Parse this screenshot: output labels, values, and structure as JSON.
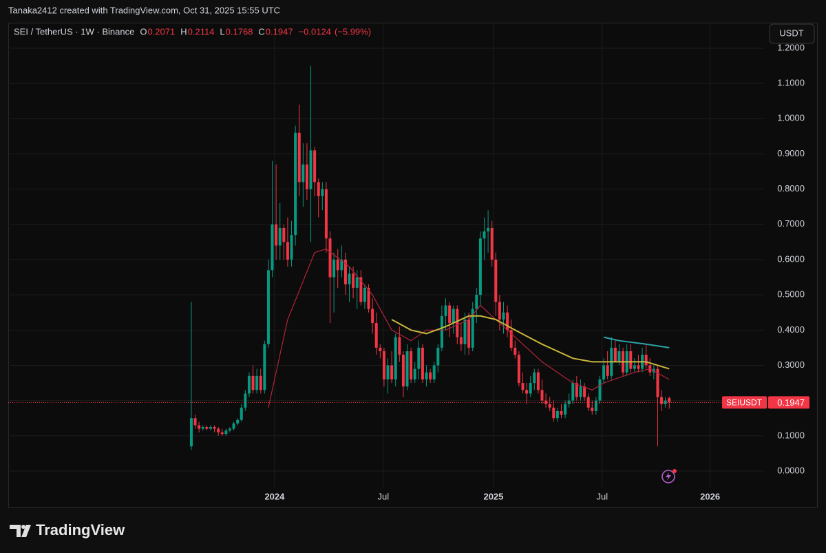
{
  "header": {
    "caption": "Tanaka2412 created with TradingView.com, Oct 31, 2025 15:55 UTC"
  },
  "footer": {
    "brand": "TradingView"
  },
  "chart_data": {
    "type": "candlestick",
    "title": "SEI / TetherUS · 1W · Binance",
    "currency": "USDT",
    "ohlc_legend": [
      {
        "label": "O",
        "value": "0.2071"
      },
      {
        "label": "H",
        "value": "0.2114"
      },
      {
        "label": "L",
        "value": "0.1768"
      },
      {
        "label": "C",
        "value": "0.1947"
      }
    ],
    "change": "−0.0124",
    "change_percent": "(−5.99%)",
    "last_price": {
      "name": "SEIUSDT",
      "value": 0.1947,
      "label": "0.1947"
    },
    "up_color": "#089981",
    "down_color": "#f23645",
    "grid": true,
    "ylim": [
      -0.1036,
      1.2703
    ],
    "yticks": [
      {
        "value": 0,
        "label": "0.0000"
      },
      {
        "value": 0.1,
        "label": "0.1000"
      },
      {
        "value": 0.2,
        "label": "0.2000"
      },
      {
        "value": 0.3,
        "label": "0.3000"
      },
      {
        "value": 0.4,
        "label": "0.4000"
      },
      {
        "value": 0.5,
        "label": "0.5000"
      },
      {
        "value": 0.6,
        "label": "0.6000"
      },
      {
        "value": 0.7,
        "label": "0.7000"
      },
      {
        "value": 0.8,
        "label": "0.8000"
      },
      {
        "value": 0.9,
        "label": "0.9000"
      },
      {
        "value": 1.0,
        "label": "1.0000"
      },
      {
        "value": 1.1,
        "label": "1.1000"
      },
      {
        "value": 1.2,
        "label": "1.2000"
      }
    ],
    "xlim": [
      -47.5,
      148.6
    ],
    "xticks": [
      {
        "value": 21.6,
        "label": "2024"
      },
      {
        "value": 49.8,
        "label": "Jul"
      },
      {
        "value": 78.4,
        "label": "2025"
      },
      {
        "value": 106.6,
        "label": "Jul"
      },
      {
        "value": 134.6,
        "label": "2026"
      }
    ],
    "candles": [
      [
        0.07,
        0.48,
        0.06,
        0.15
      ],
      [
        0.15,
        0.16,
        0.12,
        0.13
      ],
      [
        0.13,
        0.14,
        0.11,
        0.12
      ],
      [
        0.12,
        0.13,
        0.115,
        0.125
      ],
      [
        0.125,
        0.13,
        0.115,
        0.12
      ],
      [
        0.12,
        0.13,
        0.115,
        0.125
      ],
      [
        0.125,
        0.13,
        0.11,
        0.12
      ],
      [
        0.12,
        0.125,
        0.1,
        0.11
      ],
      [
        0.11,
        0.12,
        0.1,
        0.105
      ],
      [
        0.105,
        0.12,
        0.1,
        0.115
      ],
      [
        0.115,
        0.125,
        0.11,
        0.12
      ],
      [
        0.12,
        0.14,
        0.115,
        0.135
      ],
      [
        0.135,
        0.15,
        0.13,
        0.145
      ],
      [
        0.145,
        0.19,
        0.14,
        0.18
      ],
      [
        0.18,
        0.23,
        0.17,
        0.22
      ],
      [
        0.22,
        0.28,
        0.21,
        0.27
      ],
      [
        0.27,
        0.3,
        0.22,
        0.23
      ],
      [
        0.23,
        0.29,
        0.22,
        0.27
      ],
      [
        0.27,
        0.29,
        0.22,
        0.23
      ],
      [
        0.23,
        0.37,
        0.22,
        0.36
      ],
      [
        0.36,
        0.6,
        0.35,
        0.57
      ],
      [
        0.57,
        0.88,
        0.55,
        0.7
      ],
      [
        0.7,
        0.87,
        0.6,
        0.64
      ],
      [
        0.64,
        0.76,
        0.6,
        0.69
      ],
      [
        0.69,
        0.7,
        0.6,
        0.65
      ],
      [
        0.65,
        0.72,
        0.58,
        0.6
      ],
      [
        0.6,
        0.71,
        0.58,
        0.67
      ],
      [
        0.67,
        0.98,
        0.64,
        0.96
      ],
      [
        0.96,
        1.04,
        0.78,
        0.82
      ],
      [
        0.82,
        0.93,
        0.75,
        0.87
      ],
      [
        0.87,
        0.93,
        0.77,
        0.8
      ],
      [
        0.8,
        1.15,
        0.65,
        0.91
      ],
      [
        0.91,
        0.92,
        0.78,
        0.82
      ],
      [
        0.82,
        0.83,
        0.72,
        0.78
      ],
      [
        0.78,
        0.82,
        0.74,
        0.8
      ],
      [
        0.8,
        0.82,
        0.62,
        0.66
      ],
      [
        0.66,
        0.68,
        0.42,
        0.55
      ],
      [
        0.55,
        0.62,
        0.45,
        0.6
      ],
      [
        0.6,
        0.63,
        0.52,
        0.57
      ],
      [
        0.57,
        0.64,
        0.55,
        0.6
      ],
      [
        0.6,
        0.62,
        0.5,
        0.53
      ],
      [
        0.53,
        0.58,
        0.48,
        0.56
      ],
      [
        0.56,
        0.58,
        0.49,
        0.52
      ],
      [
        0.52,
        0.57,
        0.46,
        0.55
      ],
      [
        0.55,
        0.57,
        0.47,
        0.48
      ],
      [
        0.48,
        0.53,
        0.46,
        0.52
      ],
      [
        0.52,
        0.53,
        0.45,
        0.46
      ],
      [
        0.46,
        0.49,
        0.39,
        0.42
      ],
      [
        0.42,
        0.45,
        0.33,
        0.35
      ],
      [
        0.35,
        0.36,
        0.32,
        0.34
      ],
      [
        0.34,
        0.35,
        0.24,
        0.26
      ],
      [
        0.26,
        0.32,
        0.22,
        0.3
      ],
      [
        0.3,
        0.34,
        0.25,
        0.26
      ],
      [
        0.26,
        0.39,
        0.24,
        0.38
      ],
      [
        0.38,
        0.41,
        0.31,
        0.33
      ],
      [
        0.33,
        0.34,
        0.21,
        0.24
      ],
      [
        0.24,
        0.36,
        0.23,
        0.34
      ],
      [
        0.34,
        0.35,
        0.25,
        0.26
      ],
      [
        0.26,
        0.31,
        0.25,
        0.29
      ],
      [
        0.29,
        0.37,
        0.26,
        0.35
      ],
      [
        0.35,
        0.36,
        0.25,
        0.26
      ],
      [
        0.26,
        0.3,
        0.24,
        0.28
      ],
      [
        0.28,
        0.29,
        0.25,
        0.26
      ],
      [
        0.26,
        0.31,
        0.25,
        0.3
      ],
      [
        0.3,
        0.36,
        0.28,
        0.35
      ],
      [
        0.35,
        0.47,
        0.34,
        0.44
      ],
      [
        0.44,
        0.49,
        0.4,
        0.47
      ],
      [
        0.47,
        0.48,
        0.38,
        0.42
      ],
      [
        0.42,
        0.47,
        0.39,
        0.46
      ],
      [
        0.46,
        0.47,
        0.36,
        0.38
      ],
      [
        0.38,
        0.42,
        0.34,
        0.36
      ],
      [
        0.36,
        0.45,
        0.33,
        0.43
      ],
      [
        0.43,
        0.45,
        0.33,
        0.35
      ],
      [
        0.35,
        0.48,
        0.34,
        0.46
      ],
      [
        0.46,
        0.52,
        0.42,
        0.5
      ],
      [
        0.5,
        0.68,
        0.47,
        0.66
      ],
      [
        0.66,
        0.72,
        0.6,
        0.68
      ],
      [
        0.68,
        0.74,
        0.62,
        0.69
      ],
      [
        0.69,
        0.71,
        0.58,
        0.6
      ],
      [
        0.6,
        0.62,
        0.44,
        0.48
      ],
      [
        0.48,
        0.5,
        0.4,
        0.43
      ],
      [
        0.43,
        0.48,
        0.39,
        0.45
      ],
      [
        0.45,
        0.47,
        0.38,
        0.4
      ],
      [
        0.4,
        0.43,
        0.34,
        0.35
      ],
      [
        0.35,
        0.37,
        0.32,
        0.33
      ],
      [
        0.33,
        0.34,
        0.24,
        0.25
      ],
      [
        0.25,
        0.28,
        0.22,
        0.23
      ],
      [
        0.23,
        0.25,
        0.19,
        0.22
      ],
      [
        0.22,
        0.27,
        0.21,
        0.25
      ],
      [
        0.25,
        0.29,
        0.23,
        0.28
      ],
      [
        0.28,
        0.29,
        0.22,
        0.23
      ],
      [
        0.23,
        0.26,
        0.19,
        0.2
      ],
      [
        0.2,
        0.22,
        0.18,
        0.19
      ],
      [
        0.19,
        0.21,
        0.17,
        0.18
      ],
      [
        0.18,
        0.2,
        0.14,
        0.15
      ],
      [
        0.15,
        0.18,
        0.14,
        0.17
      ],
      [
        0.17,
        0.19,
        0.15,
        0.16
      ],
      [
        0.16,
        0.2,
        0.15,
        0.19
      ],
      [
        0.19,
        0.22,
        0.18,
        0.2
      ],
      [
        0.2,
        0.26,
        0.19,
        0.25
      ],
      [
        0.25,
        0.27,
        0.2,
        0.21
      ],
      [
        0.21,
        0.26,
        0.2,
        0.24
      ],
      [
        0.24,
        0.25,
        0.2,
        0.21
      ],
      [
        0.21,
        0.22,
        0.17,
        0.18
      ],
      [
        0.18,
        0.2,
        0.16,
        0.17
      ],
      [
        0.17,
        0.21,
        0.16,
        0.2
      ],
      [
        0.2,
        0.27,
        0.19,
        0.26
      ],
      [
        0.26,
        0.32,
        0.25,
        0.3
      ],
      [
        0.3,
        0.34,
        0.26,
        0.27
      ],
      [
        0.27,
        0.38,
        0.26,
        0.35
      ],
      [
        0.35,
        0.37,
        0.31,
        0.31
      ],
      [
        0.31,
        0.36,
        0.3,
        0.34
      ],
      [
        0.34,
        0.35,
        0.27,
        0.28
      ],
      [
        0.28,
        0.36,
        0.27,
        0.34
      ],
      [
        0.34,
        0.36,
        0.28,
        0.29
      ],
      [
        0.29,
        0.32,
        0.28,
        0.3
      ],
      [
        0.3,
        0.33,
        0.28,
        0.29
      ],
      [
        0.29,
        0.35,
        0.28,
        0.33
      ],
      [
        0.33,
        0.36,
        0.29,
        0.3
      ],
      [
        0.3,
        0.32,
        0.27,
        0.28
      ],
      [
        0.28,
        0.3,
        0.26,
        0.29
      ],
      [
        0.29,
        0.3,
        0.07,
        0.21
      ],
      [
        0.21,
        0.23,
        0.17,
        0.19
      ],
      [
        0.19,
        0.21,
        0.18,
        0.2
      ],
      [
        0.2071,
        0.2114,
        0.1768,
        0.1947
      ]
    ],
    "series": [
      {
        "color": "#b2243a",
        "x": [
          20,
          25,
          32,
          35,
          41,
          47,
          52,
          57,
          61,
          66,
          72,
          75,
          81,
          86,
          91,
          99,
          104,
          107,
          115,
          119,
          124
        ],
        "values": [
          0.18,
          0.43,
          0.62,
          0.63,
          0.58,
          0.5,
          0.4,
          0.37,
          0.4,
          0.4,
          0.43,
          0.47,
          0.41,
          0.36,
          0.31,
          0.25,
          0.23,
          0.25,
          0.28,
          0.29,
          0.26
        ]
      },
      {
        "color": "#c8b63c",
        "x": [
          52,
          57,
          61,
          66,
          72,
          75,
          79,
          84,
          91,
          99,
          104,
          111,
          118,
          124
        ],
        "values": [
          0.43,
          0.4,
          0.39,
          0.41,
          0.44,
          0.44,
          0.43,
          0.4,
          0.36,
          0.32,
          0.31,
          0.31,
          0.31,
          0.29
        ]
      },
      {
        "color": "#2fa3a8",
        "x": [
          107,
          111,
          118,
          124
        ],
        "values": [
          0.38,
          0.37,
          0.36,
          0.35
        ]
      }
    ]
  }
}
